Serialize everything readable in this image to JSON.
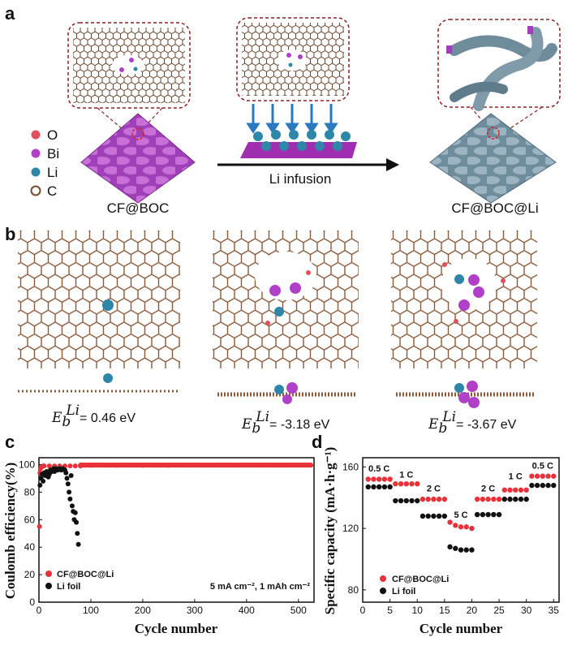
{
  "panels": {
    "a": "a",
    "b": "b",
    "c": "c",
    "d": "d"
  },
  "legend_atoms": [
    {
      "symbol": "O",
      "color": "#e0505a"
    },
    {
      "symbol": "Bi",
      "color": "#b040c8"
    },
    {
      "symbol": "Li",
      "color": "#2e86a8"
    },
    {
      "symbol": "C",
      "color": "#7a4a2a"
    }
  ],
  "panel_a": {
    "left_label": "CF@BOC",
    "arrow_label": "Li infusion",
    "right_label": "CF@BOC@Li"
  },
  "panel_b": {
    "energies": [
      {
        "symbol": "E",
        "sub": "b",
        "sup": "Li",
        "value": "= 0.46 eV"
      },
      {
        "symbol": "E",
        "sub": "b",
        "sup": "Li",
        "value": "= -3.18 eV"
      },
      {
        "symbol": "E",
        "sub": "b",
        "sup": "Li",
        "value": "= -3.67 eV"
      }
    ]
  },
  "colors": {
    "red": "#e8323a",
    "black": "#111111",
    "carbon": "#7a4a2a",
    "li": "#2e86a8",
    "bi": "#b040c8",
    "oxy": "#e0505a",
    "fiber_purple": "#b050c0",
    "fiber_blue": "#7f9aa8"
  },
  "chart_data": [
    {
      "type": "scatter",
      "xlabel": "Cycle number",
      "ylabel": "Coulomb efficiency(%)",
      "xlim": [
        0,
        530
      ],
      "ylim": [
        0,
        105
      ],
      "xticks": [
        0,
        100,
        200,
        300,
        400,
        500
      ],
      "yticks": [
        0,
        20,
        40,
        60,
        80,
        100
      ],
      "annotation": "5 mA cm⁻², 1 mAh cm⁻²",
      "legend": "bottom-left",
      "series": [
        {
          "name": "CF@BOC@Li",
          "color": "#e8323a",
          "x": [
            1,
            2,
            3,
            5,
            8,
            10,
            20,
            30,
            40,
            50,
            60,
            70,
            80,
            100,
            150,
            200,
            250,
            300,
            350,
            400,
            450,
            500,
            520
          ],
          "y": [
            55,
            94,
            97,
            98,
            99,
            99,
            99,
            99,
            99,
            99,
            99,
            99,
            99,
            99.5,
            99.5,
            99.5,
            99.5,
            99.6,
            99.6,
            99.7,
            99.7,
            99.8,
            99.8
          ]
        },
        {
          "name": "Li foil",
          "color": "#111111",
          "x": [
            2,
            4,
            6,
            8,
            10,
            12,
            15,
            18,
            20,
            22,
            25,
            28,
            30,
            33,
            36,
            40,
            43,
            46,
            50,
            52,
            54,
            56,
            58,
            60,
            62,
            64,
            66,
            68,
            70,
            72,
            74,
            76
          ],
          "y": [
            85,
            90,
            93,
            88,
            94,
            92,
            95,
            91,
            93,
            96,
            95,
            97,
            95,
            97,
            96,
            97,
            96,
            97,
            96,
            94,
            90,
            86,
            80,
            75,
            92,
            70,
            66,
            60,
            65,
            58,
            50,
            42
          ]
        }
      ]
    },
    {
      "type": "scatter",
      "xlabel": "Cycle number",
      "ylabel": "Specific capacity (mA·h·g⁻¹)",
      "xlim": [
        0,
        36
      ],
      "ylim": [
        72,
        166
      ],
      "xticks": [
        0,
        5,
        10,
        15,
        20,
        25,
        30,
        35
      ],
      "yticks": [
        80,
        120,
        160
      ],
      "legend": "bottom-left",
      "rate_labels": [
        {
          "text": "0.5 C",
          "x": 3,
          "y": 157
        },
        {
          "text": "1 C",
          "x": 8,
          "y": 153
        },
        {
          "text": "2 C",
          "x": 13,
          "y": 144
        },
        {
          "text": "5 C",
          "x": 18,
          "y": 127
        },
        {
          "text": "2 C",
          "x": 23,
          "y": 144
        },
        {
          "text": "1 C",
          "x": 28,
          "y": 152
        },
        {
          "text": "0.5 C",
          "x": 33,
          "y": 159
        }
      ],
      "series": [
        {
          "name": "CF@BOC@Li",
          "color": "#e8323a",
          "x": [
            1,
            2,
            3,
            4,
            5,
            6,
            7,
            8,
            9,
            10,
            11,
            12,
            13,
            14,
            15,
            16,
            17,
            18,
            19,
            20,
            21,
            22,
            23,
            24,
            25,
            26,
            27,
            28,
            29,
            30,
            31,
            32,
            33,
            34,
            35
          ],
          "y": [
            152,
            152,
            152,
            152,
            152,
            149,
            149,
            149,
            149,
            149,
            139,
            139,
            139,
            139,
            139,
            124,
            122,
            121,
            121,
            120,
            139,
            139,
            139,
            139,
            139,
            145,
            145,
            145,
            145,
            145,
            154,
            154,
            154,
            154,
            154
          ]
        },
        {
          "name": "Li foil",
          "color": "#111111",
          "x": [
            1,
            2,
            3,
            4,
            5,
            6,
            7,
            8,
            9,
            10,
            11,
            12,
            13,
            14,
            15,
            16,
            17,
            18,
            19,
            20,
            21,
            22,
            23,
            24,
            25,
            26,
            27,
            28,
            29,
            30,
            31,
            32,
            33,
            34,
            35
          ],
          "y": [
            147,
            147,
            147,
            147,
            147,
            138,
            138,
            138,
            138,
            138,
            128,
            128,
            128,
            128,
            128,
            108,
            107,
            106,
            106,
            106,
            129,
            129,
            129,
            129,
            129,
            139,
            139,
            139,
            139,
            139,
            148,
            148,
            148,
            148,
            148
          ]
        }
      ]
    }
  ]
}
